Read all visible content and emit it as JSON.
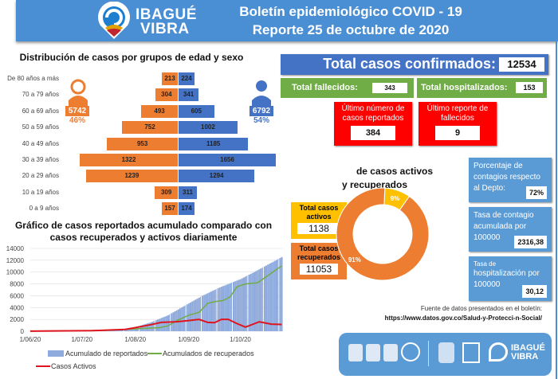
{
  "header": {
    "title_line1": "Boletín epidemiológico COVID - 19",
    "title_line2": "Reporte 25 de octubre de 2020",
    "logo_text_1": "IBAGUÉ",
    "logo_text_2": "VIBRA"
  },
  "pyramid": {
    "title": "Distribución de casos por grupos de edad y sexo",
    "female_total": "5742",
    "female_pct": "46%",
    "male_total": "6792",
    "male_pct": "54%",
    "colors": {
      "female": "#ed7d31",
      "male": "#4472c4"
    }
  },
  "summary": {
    "confirmed_label": "Total casos confirmados:",
    "confirmed_value": "12534",
    "deaths_label": "Total fallecidos:",
    "deaths_value": "343",
    "hosp_label": "Total hospitalizados:",
    "hosp_value": "153",
    "last_cases_label": "Último número de casos reportados",
    "last_cases_value": "384",
    "last_deaths_label": "Último reporte de fallecidos",
    "last_deaths_value": "9"
  },
  "donut": {
    "title_1": "de casos activos",
    "title_2": "y recuperados",
    "active_label": "Total casos activos",
    "active_value": "1138",
    "recovered_label": "Total casos recuperados",
    "recovered_value": "11053"
  },
  "rates": {
    "dept_label": "Porcentaje de contagios respecto al Depto:",
    "dept_value": "72%",
    "contagio_label": "Tasa de contagio acumulada por 100000",
    "contagio_value": "2316,38",
    "hosp_label_1": "Tasa de",
    "hosp_label_2": "hospitalización por 100000",
    "hosp_value": "30,12"
  },
  "source": {
    "line1": "Fuente de datos presentados en el boletín:",
    "line2": "https://www.datos.gov.co/Salud-y-Protecci-n-Social/"
  },
  "footer": {
    "logo_text_1": "IBAGUÉ",
    "logo_text_2": "VIBRA"
  },
  "chart_data": [
    {
      "type": "bar",
      "orientation": "horizontal-pyramid",
      "title": "Distribución de casos por grupos de edad y sexo",
      "categories": [
        "De 80 años a más",
        "70 a 79 años",
        "60 a 69 años",
        "50 a 59 años",
        "40 a 49 años",
        "30 a 39 años",
        "20 a 29 años",
        "10 a 19 años",
        "0 a 9 años"
      ],
      "series": [
        {
          "name": "Mujeres",
          "values": [
            213,
            304,
            493,
            752,
            953,
            1322,
            1239,
            309,
            157
          ]
        },
        {
          "name": "Hombres",
          "values": [
            224,
            341,
            605,
            1002,
            1185,
            1656,
            1294,
            311,
            174
          ]
        }
      ]
    },
    {
      "type": "line",
      "title": "Gráfico de casos reportados acumulado comparado con casos recuperados y activos diariamente",
      "x_start": "2020-06-01",
      "x_end": "2020-10-25",
      "x_unit": "day index from 1/06/20",
      "xticks": [
        {
          "day": 0,
          "label": "1/06/20"
        },
        {
          "day": 30,
          "label": "1/07/20"
        },
        {
          "day": 61,
          "label": "1/08/20"
        },
        {
          "day": 92,
          "label": "1/09/20"
        },
        {
          "day": 122,
          "label": "1/10/20"
        }
      ],
      "yticks": [
        "0",
        "2000",
        "4000",
        "6000",
        "8000",
        "10000",
        "12000",
        "14000"
      ],
      "ylim": [
        0,
        14000
      ],
      "grid": true,
      "legend": "bottom",
      "series": [
        {
          "name": "Acumulado de reportados",
          "kind": "bar",
          "color": "#8faadc",
          "points": [
            [
              0,
              30
            ],
            [
              30,
              100
            ],
            [
              45,
              250
            ],
            [
              55,
              400
            ],
            [
              61,
              700
            ],
            [
              70,
              1500
            ],
            [
              80,
              2700
            ],
            [
              92,
              4700
            ],
            [
              100,
              6000
            ],
            [
              110,
              7400
            ],
            [
              122,
              8800
            ],
            [
              130,
              10000
            ],
            [
              146,
              12534
            ]
          ]
        },
        {
          "name": "Acumulados de recuperados",
          "kind": "line",
          "color": "#70ad47",
          "points": [
            [
              0,
              20
            ],
            [
              45,
              150
            ],
            [
              61,
              400
            ],
            [
              75,
              600
            ],
            [
              80,
              900
            ],
            [
              85,
              1800
            ],
            [
              92,
              2700
            ],
            [
              98,
              3200
            ],
            [
              103,
              4700
            ],
            [
              107,
              5000
            ],
            [
              112,
              5200
            ],
            [
              116,
              5800
            ],
            [
              120,
              7500
            ],
            [
              125,
              8000
            ],
            [
              132,
              8200
            ],
            [
              137,
              9200
            ],
            [
              146,
              11053
            ]
          ]
        },
        {
          "name": "Casos Activos",
          "kind": "line",
          "color": "#e0141e",
          "points": [
            [
              0,
              10
            ],
            [
              36,
              100
            ],
            [
              55,
              300
            ],
            [
              61,
              600
            ],
            [
              70,
              1100
            ],
            [
              76,
              1500
            ],
            [
              85,
              1600
            ],
            [
              92,
              1800
            ],
            [
              98,
              2000
            ],
            [
              103,
              1500
            ],
            [
              107,
              1450
            ],
            [
              111,
              2000
            ],
            [
              115,
              2000
            ],
            [
              120,
              1300
            ],
            [
              125,
              700
            ],
            [
              133,
              1600
            ],
            [
              140,
              1200
            ],
            [
              146,
              1138
            ]
          ]
        }
      ]
    },
    {
      "type": "pie",
      "variant": "donut",
      "title": "de casos activos y recuperados",
      "slices": [
        {
          "label": "9%",
          "name": "Activos",
          "value": 9,
          "color": "#ffc000"
        },
        {
          "label": "91%",
          "name": "Recuperados",
          "value": 91,
          "color": "#ed7d31"
        }
      ]
    }
  ]
}
